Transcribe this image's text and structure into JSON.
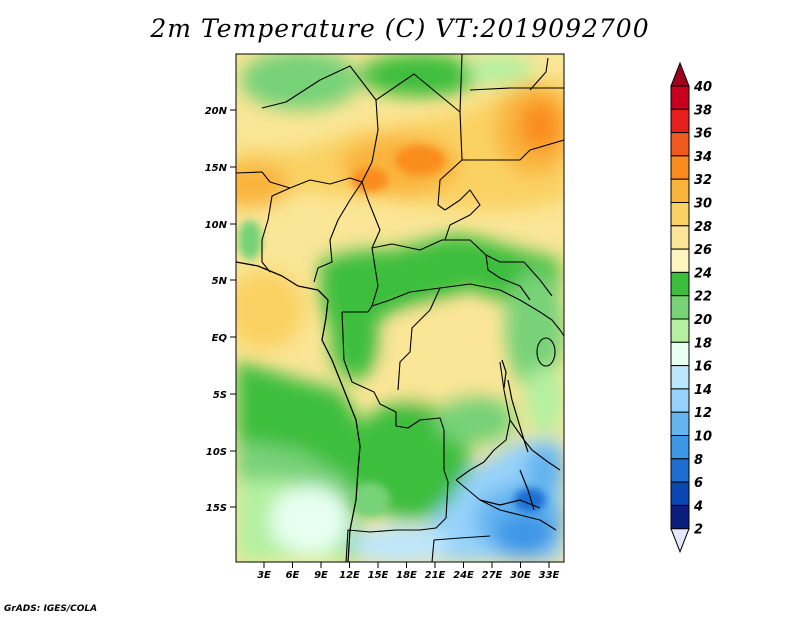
{
  "title": "2m Temperature (C) VT:2019092700",
  "credit": "GrADS: IGES/COLA",
  "lat_ticks": [
    "20N",
    "15N",
    "10N",
    "5N",
    "EQ",
    "5S",
    "10S",
    "15S"
  ],
  "lon_ticks": [
    "3E",
    "6E",
    "9E",
    "12E",
    "15E",
    "18E",
    "21E",
    "24E",
    "27E",
    "30E",
    "33E"
  ],
  "colorbar": {
    "labels": [
      "40",
      "38",
      "36",
      "34",
      "32",
      "30",
      "28",
      "26",
      "24",
      "22",
      "20",
      "18",
      "16",
      "14",
      "12",
      "10",
      "8",
      "6",
      "4",
      "2"
    ],
    "colors": [
      "#a0001e",
      "#c8001e",
      "#e61e1e",
      "#f05a1e",
      "#fa8c1e",
      "#fab43c",
      "#fad264",
      "#fae696",
      "#fff5be",
      "#3cbe3c",
      "#78d278",
      "#b4f0a0",
      "#e6fff0",
      "#bee6fa",
      "#96d2fa",
      "#64b4f0",
      "#3c96e6",
      "#1e6ed2",
      "#0a46b4",
      "#0a1e7d",
      "#e6e6ff"
    ]
  },
  "regions": [
    {
      "name": "north-hot-belt",
      "color": "#fab43c"
    },
    {
      "name": "sahel-warm",
      "color": "#fad264"
    },
    {
      "name": "central-forest",
      "color": "#3cbe3c"
    },
    {
      "name": "southern-cool",
      "color": "#96d2fa"
    }
  ]
}
